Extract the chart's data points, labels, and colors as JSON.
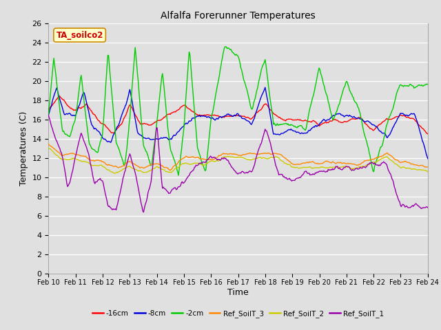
{
  "title": "Alfalfa Forerunner Temperatures",
  "xlabel": "Time",
  "ylabel": "Temperatures (C)",
  "tag_label": "TA_soilco2",
  "ylim": [
    0,
    26
  ],
  "yticks": [
    0,
    2,
    4,
    6,
    8,
    10,
    12,
    14,
    16,
    18,
    20,
    22,
    24,
    26
  ],
  "xtick_labels": [
    "Feb 10",
    "Feb 11",
    "Feb 12",
    "Feb 13",
    "Feb 14",
    "Feb 15",
    "Feb 16",
    "Feb 17",
    "Feb 18",
    "Feb 19",
    "Feb 20",
    "Feb 21",
    "Feb 22",
    "Feb 23",
    "Feb 24"
  ],
  "series_colors": {
    "neg16cm": "#FF0000",
    "neg8cm": "#0000DD",
    "neg2cm": "#00CC00",
    "ref3": "#FF8800",
    "ref2": "#CCCC00",
    "ref1": "#9900AA"
  },
  "legend_labels": [
    "-16cm",
    "-8cm",
    "-2cm",
    "Ref_SoilT_3",
    "Ref_SoilT_2",
    "Ref_SoilT_1"
  ],
  "legend_colors": [
    "#FF0000",
    "#0000DD",
    "#00CC00",
    "#FF8800",
    "#CCCC00",
    "#9900AA"
  ],
  "background_color": "#E0E0E0",
  "grid_color": "#FFFFFF"
}
